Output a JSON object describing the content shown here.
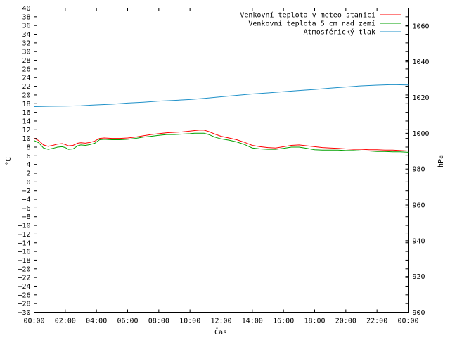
{
  "chart_data": {
    "type": "line",
    "xlabel": "Čas",
    "ylabel_left": "°C",
    "ylabel_right": "hPa",
    "x_ticks": [
      "00:00",
      "02:00",
      "04:00",
      "06:00",
      "08:00",
      "10:00",
      "12:00",
      "14:00",
      "16:00",
      "18:00",
      "20:00",
      "22:00",
      "00:00"
    ],
    "xlim_hours": [
      0,
      24
    ],
    "ylim_left": [
      -30,
      40
    ],
    "ytick_step_left": 2,
    "ylim_right": [
      900,
      1070
    ],
    "yticks_right": [
      900,
      920,
      940,
      960,
      980,
      1000,
      1020,
      1040,
      1060
    ],
    "grid": false,
    "legend_position": "top-right",
    "series": [
      {
        "name": "Venkovní teplota v meteo stanici",
        "axis": "left",
        "color": "#ff0000",
        "x": [
          0,
          0.3,
          0.6,
          0.9,
          1.2,
          1.5,
          1.8,
          2.0,
          2.2,
          2.5,
          2.8,
          3.0,
          3.3,
          3.6,
          3.9,
          4.2,
          4.5,
          5,
          5.5,
          6,
          6.5,
          7,
          7.5,
          8,
          8.5,
          9,
          9.5,
          10,
          10.3,
          10.6,
          10.9,
          11.2,
          11.6,
          12,
          12.5,
          13,
          13.5,
          14,
          14.5,
          15,
          15.5,
          16,
          16.5,
          17,
          17.5,
          18,
          18.5,
          19,
          19.5,
          20,
          20.5,
          21,
          21.5,
          22,
          22.5,
          23,
          23.5,
          24
        ],
        "y": [
          10.0,
          9.5,
          8.5,
          8.2,
          8.4,
          8.7,
          8.8,
          8.6,
          8.3,
          8.4,
          8.9,
          9.0,
          8.9,
          9.1,
          9.4,
          10.0,
          10.1,
          10.0,
          10.0,
          10.1,
          10.3,
          10.6,
          10.9,
          11.1,
          11.3,
          11.4,
          11.5,
          11.7,
          11.8,
          11.9,
          11.9,
          11.6,
          11.0,
          10.5,
          10.1,
          9.7,
          9.1,
          8.4,
          8.1,
          7.9,
          7.8,
          8.1,
          8.4,
          8.5,
          8.3,
          8.1,
          7.9,
          7.8,
          7.7,
          7.6,
          7.5,
          7.5,
          7.4,
          7.4,
          7.3,
          7.3,
          7.2,
          7.1
        ]
      },
      {
        "name": "Venkovní teplota 5 cm nad zemí",
        "axis": "left",
        "color": "#00a000",
        "x": [
          0,
          0.3,
          0.6,
          0.9,
          1.2,
          1.5,
          1.8,
          2.0,
          2.2,
          2.5,
          2.8,
          3.0,
          3.3,
          3.6,
          3.9,
          4.2,
          4.5,
          5,
          5.5,
          6,
          6.5,
          7,
          7.5,
          8,
          8.5,
          9,
          9.5,
          10,
          10.3,
          10.6,
          10.9,
          11.2,
          11.6,
          12,
          12.5,
          13,
          13.5,
          14,
          14.5,
          15,
          15.5,
          16,
          16.5,
          17,
          17.5,
          18,
          18.5,
          19,
          19.5,
          20,
          20.5,
          21,
          21.5,
          22,
          22.5,
          23,
          23.5,
          24
        ],
        "y": [
          9.5,
          9.0,
          7.8,
          7.5,
          7.7,
          8.0,
          8.1,
          7.9,
          7.5,
          7.6,
          8.3,
          8.5,
          8.4,
          8.6,
          8.9,
          9.7,
          9.8,
          9.7,
          9.7,
          9.8,
          10.0,
          10.3,
          10.5,
          10.7,
          10.9,
          10.9,
          11.0,
          11.1,
          11.2,
          11.2,
          11.2,
          10.9,
          10.3,
          9.9,
          9.6,
          9.2,
          8.6,
          7.8,
          7.6,
          7.5,
          7.5,
          7.7,
          8.0,
          8.0,
          7.7,
          7.4,
          7.3,
          7.3,
          7.3,
          7.2,
          7.2,
          7.1,
          7.1,
          7.0,
          7.0,
          6.9,
          6.9,
          6.8
        ]
      },
      {
        "name": "Atmosférický tlak",
        "axis": "right",
        "color": "#1e90c8",
        "x": [
          0,
          1,
          2,
          3,
          4,
          5,
          6,
          7,
          8,
          9,
          10,
          11,
          12,
          13,
          14,
          15,
          16,
          17,
          18,
          19,
          20,
          21,
          22,
          23,
          24
        ],
        "y": [
          1014.9,
          1015.1,
          1015.2,
          1015.4,
          1015.9,
          1016.3,
          1016.9,
          1017.4,
          1018.0,
          1018.4,
          1018.9,
          1019.6,
          1020.4,
          1021.2,
          1022.0,
          1022.6,
          1023.3,
          1023.9,
          1024.5,
          1025.2,
          1025.9,
          1026.5,
          1026.9,
          1027.2,
          1027.0
        ]
      }
    ]
  }
}
